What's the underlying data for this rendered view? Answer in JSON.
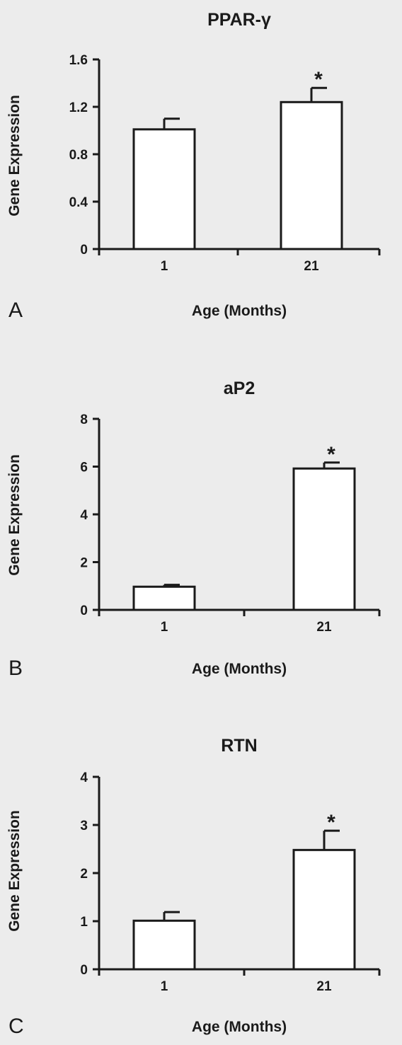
{
  "chart_data": [
    {
      "type": "bar",
      "panel_label": "A",
      "title": "PPAR-γ",
      "xlabel": "Age (Months)",
      "ylabel": "Gene Expression",
      "categories": [
        "1",
        "21"
      ],
      "values": [
        1.01,
        1.24
      ],
      "errors": [
        0.09,
        0.12
      ],
      "annotations": [
        "",
        "*"
      ],
      "ylim": [
        0,
        1.6
      ],
      "yticks": [
        "0",
        "0.4",
        "0.8",
        "1.2",
        "1.6"
      ],
      "grid": false,
      "bar_color": "#ffffff",
      "line_color": "#1a1a1a"
    },
    {
      "type": "bar",
      "panel_label": "B",
      "title": "aP2",
      "xlabel": "Age (Months)",
      "ylabel": "Gene Expression",
      "categories": [
        "1",
        "21"
      ],
      "values": [
        0.97,
        5.92
      ],
      "errors": [
        0.08,
        0.25
      ],
      "annotations": [
        "",
        "*"
      ],
      "ylim": [
        0,
        8
      ],
      "yticks": [
        "0",
        "2",
        "4",
        "6",
        "8"
      ],
      "grid": false,
      "bar_color": "#ffffff",
      "line_color": "#1a1a1a"
    },
    {
      "type": "bar",
      "panel_label": "C",
      "title": "RTN",
      "xlabel": "Age (Months)",
      "ylabel": "Gene Expression",
      "categories": [
        "1",
        "21"
      ],
      "values": [
        1.01,
        2.48
      ],
      "errors": [
        0.18,
        0.4
      ],
      "annotations": [
        "",
        "*"
      ],
      "ylim": [
        0,
        4
      ],
      "yticks": [
        "0",
        "1",
        "2",
        "3",
        "4"
      ],
      "grid": false,
      "bar_color": "#ffffff",
      "line_color": "#1a1a1a"
    }
  ]
}
